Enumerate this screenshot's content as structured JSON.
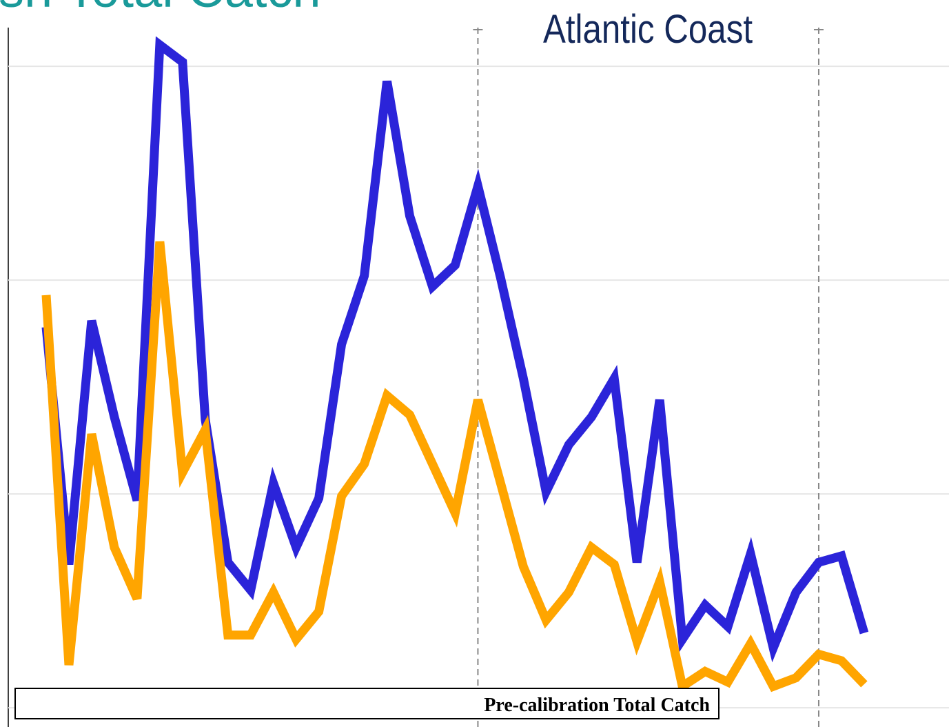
{
  "chart_data": {
    "type": "line",
    "title": "sh Total Catch",
    "subtitle": "Atlantic Coast",
    "categories": [
      null,
      null,
      null,
      null,
      null,
      null,
      null,
      null,
      null,
      null,
      null,
      null,
      null,
      null,
      null,
      null,
      null,
      null,
      null,
      null,
      null,
      null,
      null,
      null,
      null,
      null,
      null,
      null,
      null,
      null,
      null,
      null,
      null,
      null,
      null,
      null,
      null
    ],
    "series": [
      {
        "color": "#2b24d9",
        "values": [
          1.78,
          0.67,
          1.81,
          1.36,
          0.97,
          3.1,
          3.02,
          1.35,
          0.68,
          0.55,
          1.05,
          0.75,
          0.98,
          1.7,
          2.02,
          2.93,
          2.3,
          1.97,
          2.07,
          2.44,
          2.01,
          1.54,
          1.01,
          1.23,
          1.36,
          1.54,
          0.68,
          1.44,
          0.32,
          0.48,
          0.38,
          0.72,
          0.28,
          0.54,
          0.68,
          0.71,
          0.35
        ]
      },
      {
        "name": "Pre-calibration Total Catch",
        "color": "#ffa500",
        "values": [
          1.93,
          0.2,
          1.28,
          0.75,
          0.51,
          2.18,
          1.1,
          1.3,
          0.34,
          0.34,
          0.54,
          0.32,
          0.45,
          0.99,
          1.14,
          1.46,
          1.37,
          1.14,
          0.91,
          1.44,
          1.05,
          0.66,
          0.41,
          0.54,
          0.75,
          0.67,
          0.31,
          0.59,
          0.1,
          0.17,
          0.12,
          0.3,
          0.1,
          0.14,
          0.25,
          0.22,
          0.11
        ]
      }
    ],
    "ylim": [
      -0.09,
      3.31
    ],
    "yticks": [
      0,
      1,
      2,
      3
    ],
    "grid": true,
    "vlines": [
      19,
      34
    ]
  }
}
